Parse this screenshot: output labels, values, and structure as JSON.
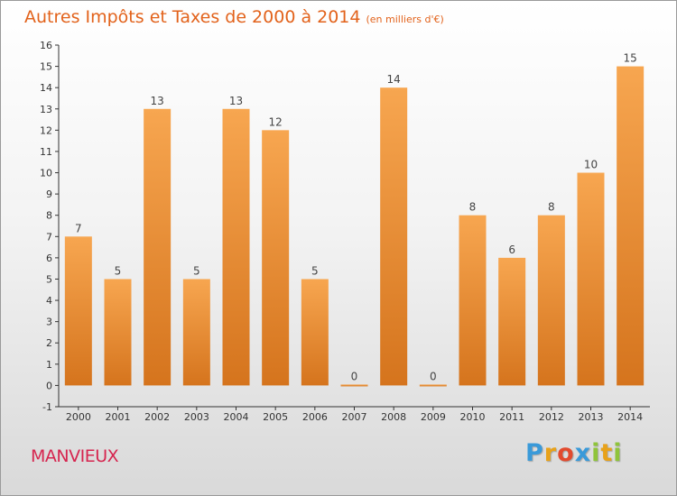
{
  "title": "Autres Impôts et Taxes de 2000 à 2014",
  "subtitle": "(en milliers d'€)",
  "town": "MANVIEUX",
  "logo": {
    "letters": [
      "P",
      "r",
      "o",
      "x",
      "i",
      "t",
      "i"
    ],
    "colors": [
      "#3a9ad9",
      "#e8a21a",
      "#e24a2e",
      "#3a9ad9",
      "#8fc43a",
      "#e8a21a",
      "#8fc43a"
    ]
  },
  "colors": {
    "bar_top": "#f7a650",
    "bar_bottom": "#d5741d",
    "title": "#e2621b",
    "town": "#d6254f"
  },
  "chart_data": {
    "type": "bar",
    "categories": [
      "2000",
      "2001",
      "2002",
      "2003",
      "2004",
      "2005",
      "2006",
      "2007",
      "2008",
      "2009",
      "2010",
      "2011",
      "2012",
      "2013",
      "2014"
    ],
    "values": [
      7,
      5,
      13,
      5,
      13,
      12,
      5,
      0,
      14,
      0,
      8,
      6,
      8,
      10,
      15
    ],
    "data_labels": [
      "7",
      "5",
      "13",
      "5",
      "13",
      "12",
      "5",
      "0",
      "14",
      "0",
      "8",
      "6",
      "8",
      "10",
      "15"
    ],
    "ylim": [
      -1,
      16
    ],
    "yticks": [
      "-1",
      "0",
      "1",
      "2",
      "3",
      "4",
      "5",
      "6",
      "7",
      "8",
      "9",
      "10",
      "11",
      "12",
      "13",
      "14",
      "15",
      "16"
    ],
    "grid": false,
    "xlabel": "",
    "ylabel": ""
  }
}
